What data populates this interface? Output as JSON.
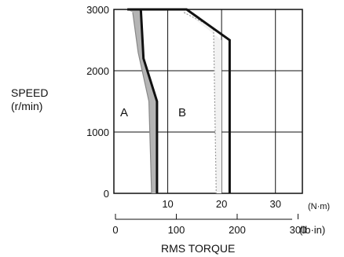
{
  "chart_data": {
    "type": "line",
    "title": "",
    "ylabel": [
      "SPEED",
      "(r/min)"
    ],
    "xlabel": "RMS TORQUE",
    "x_unit_primary": "(N·m)",
    "x_unit_secondary": "(lb·in)",
    "xlim": [
      0,
      35
    ],
    "ylim": [
      0,
      3000
    ],
    "y_ticks": [
      "0",
      "1000",
      "2000",
      "3000"
    ],
    "x_ticks_primary": [
      "10",
      "20",
      "30"
    ],
    "x_ticks_secondary": [
      "0",
      "100",
      "200",
      "300"
    ],
    "grid": true,
    "regions": [
      {
        "name": "A"
      },
      {
        "name": "B"
      }
    ],
    "series": [
      {
        "points": [
          [
            3.5,
            2950
          ],
          [
            4.5,
            2300
          ],
          [
            6.5,
            1500
          ],
          [
            7.0,
            0
          ]
        ]
      },
      {
        "points": [
          [
            2.5,
            3000
          ],
          [
            5.0,
            3000
          ],
          [
            5.5,
            2200
          ],
          [
            8.0,
            1500
          ],
          [
            8.0,
            0
          ]
        ]
      },
      {
        "points": [
          [
            5.0,
            3000
          ],
          [
            13.5,
            3000
          ],
          [
            21.5,
            2500
          ],
          [
            21.5,
            0
          ]
        ]
      },
      {
        "points": [
          [
            13.0,
            2950
          ],
          [
            18.5,
            2700
          ],
          [
            19.0,
            0
          ]
        ]
      }
    ]
  }
}
